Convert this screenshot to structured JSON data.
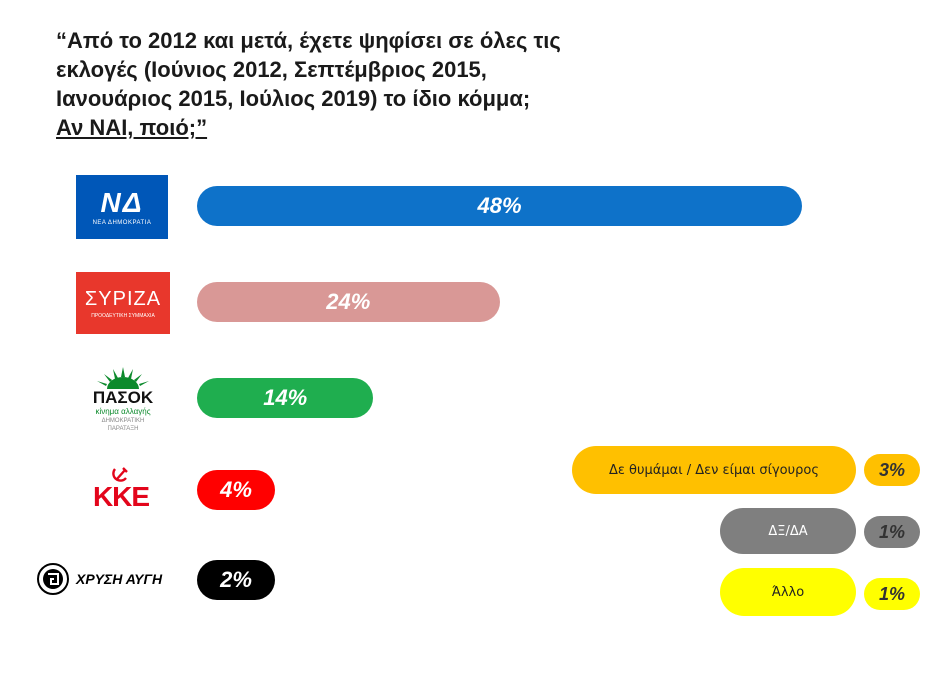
{
  "title": {
    "line1": "“Από το 2012 και μετά, έχετε ψηφίσει σε όλες τις",
    "line2": "εκλογές (Ιούνιος 2012, Σεπτέμβριος 2015,",
    "line3": "Ιανουάριος 2015, Ιούλιος 2019) το ίδιο κόμμα;",
    "line4": "Αν ΝΑΙ, ποιό;”"
  },
  "logos": {
    "nd": {
      "mark": "ΝΔ",
      "caption": "ΝΕΑ ΔΗΜΟΚΡΑΤΙΑ",
      "color": "#0057b8"
    },
    "syriza": {
      "mark": "ΣΥΡΙΖΑ",
      "caption": "ΠΡΟΟΔΕΥΤΙΚΗ ΣΥΜΜΑΧΙΑ",
      "color": "#e8372c"
    },
    "pasok": {
      "mark": "ΠΑΣΟΚ",
      "sub": "κίνημα αλλαγής",
      "caption1": "ΔΗΜΟΚΡΑΤΙΚΗ",
      "caption2": "ΠΑΡΑΤΑΞΗ",
      "color": "#0c8a2c"
    },
    "kke": {
      "mark": "ΚΚΕ",
      "color": "#e3051b"
    },
    "xa": {
      "mark": "ΧΡΥΣΗ ΑΥΓΗ",
      "color": "#000000"
    }
  },
  "chart_data": {
    "type": "bar",
    "orientation": "horizontal",
    "categories": [
      "ΝΔ",
      "ΣΥΡΙΖΑ",
      "ΠΑΣΟΚ",
      "ΚΚΕ",
      "ΧΡΥΣΗ ΑΥΓΗ"
    ],
    "values": [
      48,
      24,
      14,
      4,
      2
    ],
    "labels": [
      "48%",
      "24%",
      "14%",
      "4%",
      "2%"
    ],
    "colors": [
      "#0e72c9",
      "#d99896",
      "#1fae4f",
      "#ff0000",
      "#000000"
    ],
    "other_responses": [
      {
        "label": "Δε θυμάμαι / Δεν είμαι σίγουρος",
        "value": 3,
        "value_label": "3%",
        "color": "#ffc000"
      },
      {
        "label": "ΔΞ/ΔΑ",
        "value": 1,
        "value_label": "1%",
        "color": "#7f7f7f"
      },
      {
        "label": "Άλλο",
        "value": 1,
        "value_label": "1%",
        "color": "#ffff00"
      }
    ]
  }
}
